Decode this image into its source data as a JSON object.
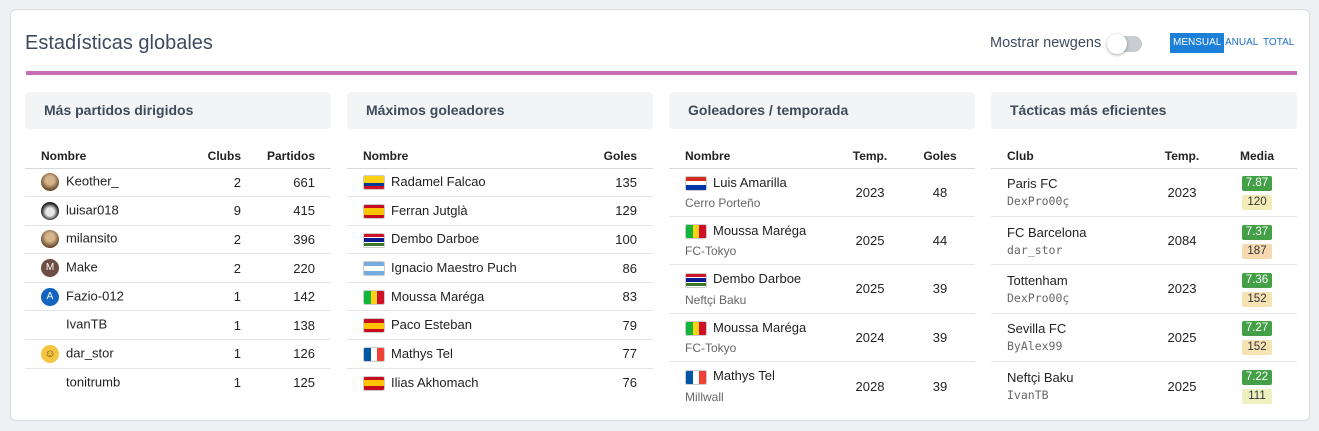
{
  "header": {
    "title": "Estadísticas globales",
    "newgens_label": "Mostrar newgens",
    "periods": [
      "MENSUAL",
      "ANUAL",
      "TOTAL"
    ],
    "active_period": "MENSUAL"
  },
  "panel_managers": {
    "title": "Más partidos dirigidos",
    "columns": [
      "Nombre",
      "Clubs",
      "Partidos"
    ],
    "rows": [
      {
        "name": "Keother_",
        "clubs": "2",
        "matches": "661",
        "avatar": "photo"
      },
      {
        "name": "luisar018",
        "clubs": "9",
        "matches": "415",
        "avatar": "photo-bw"
      },
      {
        "name": "milansito",
        "clubs": "2",
        "matches": "396",
        "avatar": "photo"
      },
      {
        "name": "Make",
        "clubs": "2",
        "matches": "220",
        "avatar": "letter-m"
      },
      {
        "name": "Fazio-012",
        "clubs": "1",
        "matches": "142",
        "avatar": "letter-a"
      },
      {
        "name": "IvanTB",
        "clubs": "1",
        "matches": "138",
        "avatar": "none"
      },
      {
        "name": "dar_stor",
        "clubs": "1",
        "matches": "126",
        "avatar": "emoji"
      },
      {
        "name": "tonitrumb",
        "clubs": "1",
        "matches": "125",
        "avatar": "none"
      }
    ],
    "avatar_letters": {
      "letter-m": "M",
      "letter-a": "A"
    }
  },
  "panel_scorers": {
    "title": "Máximos goleadores",
    "columns": [
      "Nombre",
      "Goles"
    ],
    "rows": [
      {
        "name": "Radamel Falcao",
        "goals": "135",
        "flag": "colombia"
      },
      {
        "name": "Ferran Jutglà",
        "goals": "129",
        "flag": "spain"
      },
      {
        "name": "Dembo Darboe",
        "goals": "100",
        "flag": "gambia"
      },
      {
        "name": "Ignacio Maestro Puch",
        "goals": "86",
        "flag": "argentina"
      },
      {
        "name": "Moussa Maréga",
        "goals": "83",
        "flag": "mali"
      },
      {
        "name": "Paco Esteban",
        "goals": "79",
        "flag": "spain"
      },
      {
        "name": "Mathys Tel",
        "goals": "77",
        "flag": "france"
      },
      {
        "name": "Ilias Akhomach",
        "goals": "76",
        "flag": "spain"
      }
    ]
  },
  "panel_season": {
    "title": "Goleadores / temporada",
    "columns": [
      "Nombre",
      "Temp.",
      "Goles"
    ],
    "rows": [
      {
        "name": "Luis Amarilla",
        "club": "Cerro Porteño",
        "season": "2023",
        "goals": "48",
        "flag": "paraguay"
      },
      {
        "name": "Moussa Maréga",
        "club": "FC-Tokyo",
        "season": "2025",
        "goals": "44",
        "flag": "mali"
      },
      {
        "name": "Dembo Darboe",
        "club": "Neftçi Baku",
        "season": "2025",
        "goals": "39",
        "flag": "gambia"
      },
      {
        "name": "Moussa Maréga",
        "club": "FC-Tokyo",
        "season": "2024",
        "goals": "39",
        "flag": "mali"
      },
      {
        "name": "Mathys Tel",
        "club": "Millwall",
        "season": "2028",
        "goals": "39",
        "flag": "france"
      }
    ]
  },
  "panel_tactics": {
    "title": "Tácticas más eficientes",
    "columns": [
      "Club",
      "Temp.",
      "Media"
    ],
    "rows": [
      {
        "club": "Paris FC",
        "user": "DexPro00ç",
        "season": "2023",
        "rating": "7.87",
        "count": "120",
        "count_color": "#f4ecb8"
      },
      {
        "club": "FC Barcelona",
        "user": "dar_stor",
        "season": "2084",
        "rating": "7.37",
        "count": "187",
        "count_color": "#f6d9b0"
      },
      {
        "club": "Tottenham",
        "user": "DexPro00ç",
        "season": "2023",
        "rating": "7.36",
        "count": "152",
        "count_color": "#f5e3b4"
      },
      {
        "club": "Sevilla FC",
        "user": "ByAlex99",
        "season": "2025",
        "rating": "7.27",
        "count": "152",
        "count_color": "#f5e3b4"
      },
      {
        "club": "Neftçi Baku",
        "user": "IvanTB",
        "season": "2025",
        "rating": "7.22",
        "count": "111",
        "count_color": "#eef0c0"
      }
    ]
  },
  "colors": {
    "accent_divider": "#c46fb6",
    "active_period": "#1c7fd8",
    "rating_green": "#43a047"
  }
}
